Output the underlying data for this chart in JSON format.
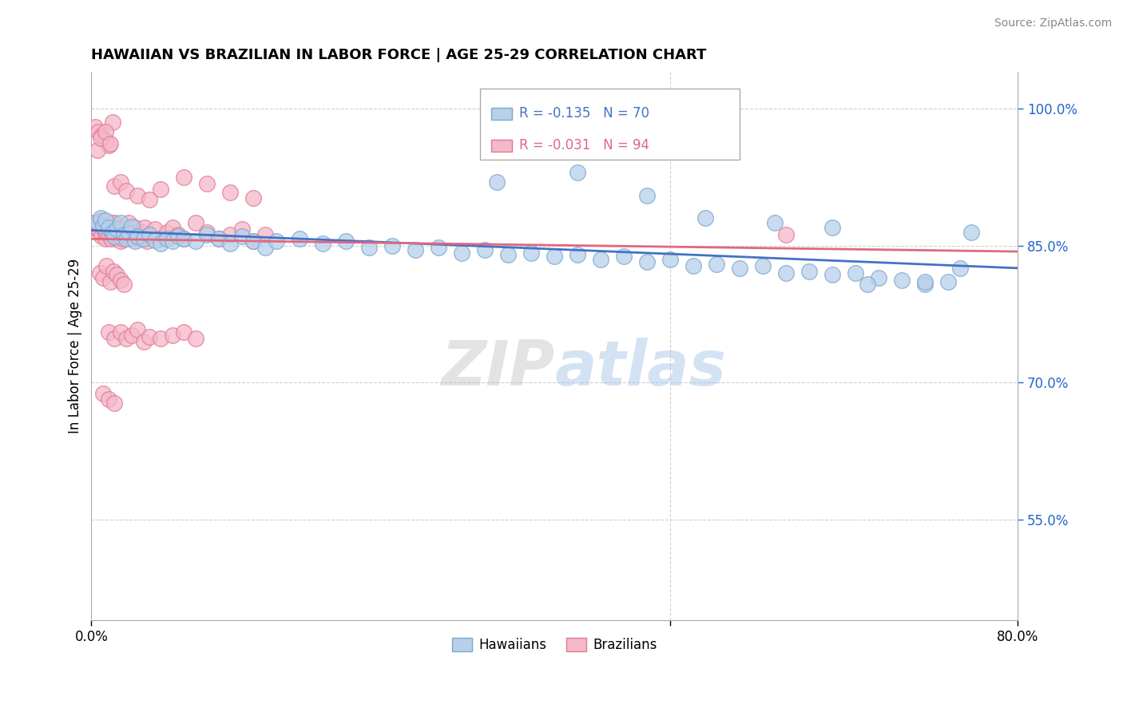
{
  "title": "HAWAIIAN VS BRAZILIAN IN LABOR FORCE | AGE 25-29 CORRELATION CHART",
  "source": "Source: ZipAtlas.com",
  "ylabel": "In Labor Force | Age 25-29",
  "xlim": [
    0.0,
    0.8
  ],
  "ylim": [
    0.44,
    1.04
  ],
  "yticks_right": [
    0.55,
    0.7,
    0.85,
    1.0
  ],
  "yticklabels_right": [
    "55.0%",
    "70.0%",
    "85.0%",
    "100.0%"
  ],
  "hawaiian_color": "#b8d0ea",
  "hawaiian_edge": "#7aa8cf",
  "brazilian_color": "#f5b8c8",
  "brazilian_edge": "#e07898",
  "trend_hawaiian": "#4472c4",
  "trend_brazilian": "#e06880",
  "legend_R_hawaiian": "R = -0.135",
  "legend_N_hawaiian": "N = 70",
  "legend_R_brazilian": "R = -0.031",
  "legend_N_brazilian": "N = 94",
  "watermark_ZIP": "ZIP",
  "watermark_atlas": "atlas",
  "grid_color": "#d0d0d0",
  "hawaiian_x": [
    0.005,
    0.008,
    0.01,
    0.012,
    0.015,
    0.018,
    0.02,
    0.022,
    0.025,
    0.028,
    0.03,
    0.032,
    0.035,
    0.038,
    0.04,
    0.045,
    0.05,
    0.055,
    0.06,
    0.065,
    0.07,
    0.075,
    0.08,
    0.09,
    0.1,
    0.11,
    0.12,
    0.13,
    0.14,
    0.15,
    0.16,
    0.18,
    0.2,
    0.22,
    0.24,
    0.26,
    0.28,
    0.3,
    0.32,
    0.34,
    0.36,
    0.38,
    0.4,
    0.42,
    0.44,
    0.46,
    0.48,
    0.5,
    0.52,
    0.54,
    0.56,
    0.58,
    0.6,
    0.62,
    0.64,
    0.66,
    0.68,
    0.7,
    0.72,
    0.74,
    0.35,
    0.42,
    0.48,
    0.53,
    0.59,
    0.64,
    0.67,
    0.72,
    0.75,
    0.76
  ],
  "hawaiian_y": [
    0.875,
    0.88,
    0.872,
    0.878,
    0.87,
    0.865,
    0.86,
    0.868,
    0.875,
    0.862,
    0.858,
    0.864,
    0.871,
    0.855,
    0.86,
    0.858,
    0.862,
    0.856,
    0.852,
    0.858,
    0.855,
    0.86,
    0.858,
    0.855,
    0.862,
    0.858,
    0.852,
    0.86,
    0.855,
    0.848,
    0.855,
    0.858,
    0.852,
    0.855,
    0.848,
    0.85,
    0.845,
    0.848,
    0.842,
    0.845,
    0.84,
    0.842,
    0.838,
    0.84,
    0.835,
    0.838,
    0.832,
    0.835,
    0.828,
    0.83,
    0.825,
    0.828,
    0.82,
    0.822,
    0.818,
    0.82,
    0.815,
    0.812,
    0.808,
    0.81,
    0.92,
    0.93,
    0.905,
    0.88,
    0.875,
    0.87,
    0.808,
    0.81,
    0.825,
    0.865
  ],
  "brazilian_x": [
    0.002,
    0.004,
    0.005,
    0.006,
    0.007,
    0.008,
    0.009,
    0.01,
    0.011,
    0.012,
    0.013,
    0.014,
    0.015,
    0.016,
    0.017,
    0.018,
    0.019,
    0.02,
    0.021,
    0.022,
    0.023,
    0.024,
    0.025,
    0.026,
    0.027,
    0.028,
    0.03,
    0.032,
    0.034,
    0.036,
    0.038,
    0.04,
    0.042,
    0.044,
    0.046,
    0.048,
    0.05,
    0.055,
    0.06,
    0.065,
    0.07,
    0.075,
    0.08,
    0.09,
    0.1,
    0.11,
    0.12,
    0.13,
    0.14,
    0.15,
    0.003,
    0.006,
    0.009,
    0.012,
    0.015,
    0.018,
    0.005,
    0.008,
    0.012,
    0.016,
    0.02,
    0.025,
    0.03,
    0.04,
    0.05,
    0.06,
    0.08,
    0.1,
    0.12,
    0.14,
    0.007,
    0.01,
    0.013,
    0.016,
    0.019,
    0.022,
    0.025,
    0.028,
    0.015,
    0.02,
    0.025,
    0.03,
    0.035,
    0.04,
    0.045,
    0.05,
    0.06,
    0.07,
    0.08,
    0.09,
    0.01,
    0.015,
    0.02,
    0.6
  ],
  "brazilian_y": [
    0.875,
    0.87,
    0.868,
    0.872,
    0.865,
    0.878,
    0.86,
    0.872,
    0.868,
    0.858,
    0.865,
    0.87,
    0.862,
    0.875,
    0.858,
    0.865,
    0.87,
    0.875,
    0.865,
    0.858,
    0.862,
    0.868,
    0.855,
    0.87,
    0.858,
    0.865,
    0.862,
    0.875,
    0.858,
    0.865,
    0.87,
    0.862,
    0.858,
    0.865,
    0.87,
    0.855,
    0.862,
    0.868,
    0.858,
    0.865,
    0.87,
    0.862,
    0.858,
    0.875,
    0.865,
    0.858,
    0.862,
    0.868,
    0.855,
    0.862,
    0.98,
    0.975,
    0.97,
    0.965,
    0.96,
    0.985,
    0.955,
    0.968,
    0.975,
    0.962,
    0.915,
    0.92,
    0.91,
    0.905,
    0.9,
    0.912,
    0.925,
    0.918,
    0.908,
    0.902,
    0.82,
    0.815,
    0.828,
    0.81,
    0.822,
    0.818,
    0.812,
    0.808,
    0.755,
    0.748,
    0.755,
    0.748,
    0.752,
    0.758,
    0.745,
    0.75,
    0.748,
    0.752,
    0.755,
    0.748,
    0.688,
    0.682,
    0.678,
    0.862
  ]
}
